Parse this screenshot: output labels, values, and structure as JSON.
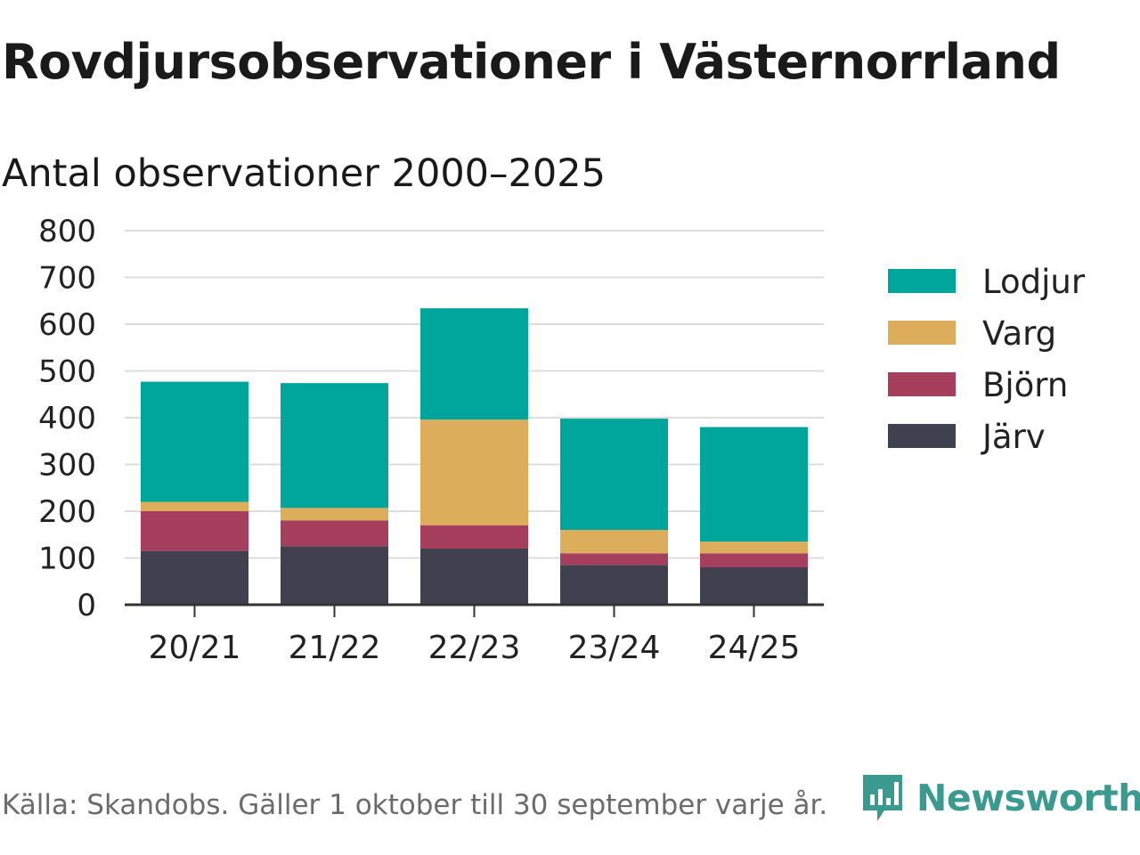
{
  "title": "Rovdjursobservationer i Västernorrland",
  "subtitle": "Antal observationer 2000–2025",
  "source": "Källa: Skandobs. Gäller 1 oktober till 30 september varje år.",
  "brand": "Newsworthy",
  "colors": {
    "Lodjur": "#00a59b",
    "Varg": "#dcad5b",
    "Björn": "#a63f5e",
    "Järv": "#40404f",
    "grid": "#dddddd",
    "axis": "#333333",
    "brand": "#3a9a8f"
  },
  "chart_data": {
    "type": "bar",
    "stacked": true,
    "categories": [
      "20/21",
      "21/22",
      "22/23",
      "23/24",
      "24/25"
    ],
    "series": [
      {
        "name": "Järv",
        "values": [
          115,
          125,
          120,
          85,
          80
        ]
      },
      {
        "name": "Björn",
        "values": [
          85,
          55,
          50,
          25,
          30
        ]
      },
      {
        "name": "Varg",
        "values": [
          20,
          27,
          226,
          50,
          25
        ]
      },
      {
        "name": "Lodjur",
        "values": [
          257,
          267,
          238,
          238,
          245
        ]
      }
    ],
    "legend": [
      "Lodjur",
      "Varg",
      "Björn",
      "Järv"
    ],
    "ylim": [
      0,
      800
    ],
    "yticks": [
      0,
      100,
      200,
      300,
      400,
      500,
      600,
      700,
      800
    ],
    "grid": true,
    "legend_position": "right"
  }
}
